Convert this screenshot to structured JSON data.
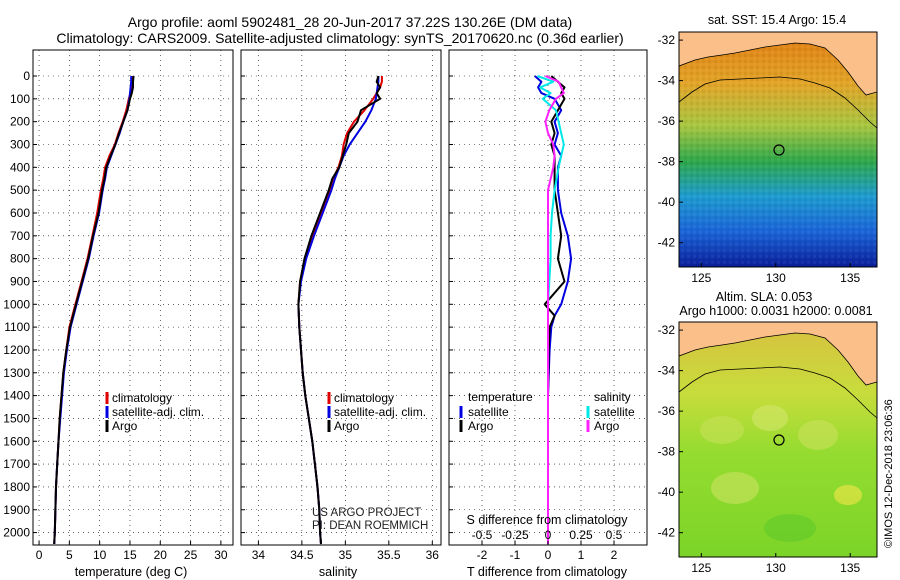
{
  "title_line1": "Argo profile: aoml 5902481_28 20-Jun-2017 37.22S 130.26E (DM data)",
  "title_line2": "Climatology: CARS2009. Satellite-adjusted climatology: synTS_20170620.nc (0.36d earlier)",
  "colors": {
    "climatology": "#e00000",
    "satellite": "#0000e0",
    "argo": "#000000",
    "sal_sat": "#00e8e8",
    "sal_argo": "#ff20ff"
  },
  "depth_ticks": [
    "0",
    "100",
    "200",
    "300",
    "400",
    "500",
    "600",
    "700",
    "800",
    "900",
    "1000",
    "1100",
    "1200",
    "1300",
    "1400",
    "1500",
    "1600",
    "1700",
    "1800",
    "1900",
    "2000"
  ],
  "credit": {
    "line1": "US ARGO PROJECT",
    "line2": "PI: DEAN ROEMMICH"
  },
  "copyright": "©IMOS 12-Dec-2018 23:06:36",
  "chart_data": [
    {
      "type": "line",
      "name": "temperature",
      "xlabel": "temperature (deg C)",
      "xlim": [
        -1,
        32
      ],
      "ylim": [
        2100,
        0
      ],
      "ylabel": "",
      "xticks": [
        "0",
        "5",
        "10",
        "15",
        "20",
        "25",
        "30"
      ],
      "grid": true,
      "legend": [
        "climatology",
        "satellite-adj. clim.",
        "Argo"
      ],
      "depth": [
        0,
        25,
        50,
        75,
        100,
        150,
        200,
        250,
        300,
        350,
        400,
        450,
        500,
        600,
        700,
        800,
        900,
        1000,
        1100,
        1200,
        1300,
        1400,
        1500,
        1600,
        1700,
        1800,
        1900,
        2000,
        2050
      ],
      "series": [
        {
          "name": "climatology",
          "color": "climatology",
          "values": [
            15.3,
            15.3,
            15.2,
            15.1,
            14.8,
            14.4,
            13.8,
            13.1,
            12.5,
            11.6,
            10.9,
            10.6,
            10.2,
            9.6,
            8.8,
            8.0,
            7.0,
            6.0,
            5.0,
            4.5,
            4.0,
            3.7,
            3.4,
            3.2,
            3.0,
            2.8,
            2.7,
            2.6,
            2.5
          ]
        },
        {
          "name": "satellite-adj. clim.",
          "color": "satellite",
          "values": [
            15.2,
            15.2,
            15.1,
            15.0,
            14.9,
            14.6,
            13.9,
            13.3,
            12.6,
            11.9,
            11.2,
            10.9,
            10.5,
            9.9,
            9.0,
            8.2,
            7.2,
            6.2,
            5.2,
            4.6,
            4.1,
            3.8,
            3.5,
            3.2,
            3.0,
            2.8,
            2.7,
            2.6,
            2.5
          ]
        },
        {
          "name": "Argo",
          "color": "argo",
          "values": [
            15.6,
            15.5,
            15.5,
            15.3,
            15.0,
            14.6,
            13.9,
            13.2,
            12.6,
            11.8,
            11.1,
            10.8,
            10.4,
            9.8,
            8.9,
            8.1,
            7.1,
            6.1,
            5.1,
            4.5,
            4.0,
            3.7,
            3.4,
            3.2,
            3.0,
            2.8,
            2.7,
            2.6,
            2.5
          ]
        }
      ]
    },
    {
      "type": "line",
      "name": "salinity",
      "xlabel": "salinity",
      "xlim": [
        33.8,
        36.1
      ],
      "ylim": [
        2100,
        0
      ],
      "ylabel": "",
      "xticks": [
        "34",
        "34.5",
        "35",
        "35.5",
        "36"
      ],
      "grid": true,
      "legend": [
        "climatology",
        "satellite-adj. clim.",
        "Argo"
      ],
      "depth": [
        0,
        25,
        50,
        75,
        100,
        150,
        200,
        250,
        300,
        350,
        400,
        450,
        500,
        600,
        700,
        800,
        900,
        1000,
        1100,
        1200,
        1300,
        1400,
        1500,
        1600,
        1700,
        1800,
        1900,
        2000,
        2050
      ],
      "series": [
        {
          "name": "climatology",
          "color": "climatology",
          "values": [
            35.42,
            35.42,
            35.4,
            35.36,
            35.32,
            35.22,
            35.1,
            35.02,
            34.98,
            34.96,
            34.92,
            34.86,
            34.82,
            34.72,
            34.62,
            34.54,
            34.48,
            34.46,
            34.47,
            34.49,
            34.51,
            34.54,
            34.58,
            34.62,
            34.65,
            34.68,
            34.7,
            34.71,
            34.72
          ]
        },
        {
          "name": "satellite-adj. clim.",
          "color": "satellite",
          "values": [
            35.38,
            35.38,
            35.37,
            35.36,
            35.35,
            35.3,
            35.23,
            35.14,
            35.05,
            34.98,
            34.93,
            34.88,
            34.84,
            34.74,
            34.64,
            34.55,
            34.49,
            34.46,
            34.47,
            34.49,
            34.51,
            34.54,
            34.58,
            34.62,
            34.65,
            34.68,
            34.7,
            34.71,
            34.72
          ]
        },
        {
          "name": "Argo",
          "color": "argo",
          "values": [
            35.38,
            35.36,
            35.4,
            35.36,
            35.4,
            35.18,
            35.14,
            35.04,
            35.01,
            34.97,
            34.93,
            34.85,
            34.81,
            34.71,
            34.61,
            34.53,
            34.48,
            34.46,
            34.47,
            34.49,
            34.51,
            34.54,
            34.58,
            34.62,
            34.65,
            34.68,
            34.7,
            34.71,
            34.72
          ]
        }
      ]
    },
    {
      "type": "line",
      "name": "difference",
      "xlabel": "T difference from climatology",
      "xlabel_top": "S difference from climatology",
      "xlim": [
        -3,
        3
      ],
      "ylim": [
        2100,
        0
      ],
      "ylabel": "",
      "xticks": [
        "-2",
        "-1",
        "0",
        "1",
        "2"
      ],
      "xticks_top": [
        "-0.5",
        "-0.25",
        "0",
        "0.25",
        "0.5"
      ],
      "grid": true,
      "legend_left_title": "temperature",
      "legend_right_title": "salinity",
      "legend_left": [
        "satellite",
        "Argo"
      ],
      "legend_right": [
        "satellite",
        "Argo"
      ],
      "depth": [
        0,
        25,
        50,
        75,
        100,
        150,
        200,
        250,
        300,
        350,
        400,
        500,
        600,
        700,
        800,
        900,
        1000,
        1050,
        1100,
        1200,
        1400,
        1600,
        1800,
        2050
      ],
      "series": [
        {
          "name": "temperature satellite",
          "color": "satellite",
          "values": [
            -0.4,
            -0.2,
            -0.3,
            -0.2,
            0.2,
            0.4,
            0.2,
            0.3,
            0.2,
            0.4,
            0.3,
            0.3,
            0.4,
            0.6,
            0.7,
            0.6,
            0.4,
            0.2,
            0.1,
            0.05,
            0.0,
            0.0,
            0.0,
            0.0
          ]
        },
        {
          "name": "temperature Argo",
          "color": "argo",
          "values": [
            0.1,
            0.3,
            0.5,
            0.4,
            0.5,
            0.3,
            0.1,
            0.2,
            0.1,
            0.2,
            0.2,
            0.2,
            0.3,
            0.4,
            0.3,
            0.5,
            -0.1,
            0.2,
            0.05,
            0.02,
            0.0,
            0.0,
            0.0,
            0.0
          ]
        },
        {
          "name": "salinity satellite",
          "color": "sal_sat",
          "values": [
            -0.08,
            0.04,
            -0.06,
            0.02,
            -0.04,
            0.06,
            0.08,
            0.1,
            0.12,
            0.1,
            0.08,
            0.05,
            0.03,
            0.02,
            0.02,
            0.01,
            0.0,
            0.0,
            0.0,
            0.0,
            0.0,
            0.0,
            0.0,
            0.0
          ]
        },
        {
          "name": "salinity Argo",
          "color": "sal_argo",
          "values": [
            -0.02,
            0.08,
            0.1,
            0.12,
            0.06,
            0.01,
            -0.02,
            0.0,
            0.04,
            0.05,
            0.04,
            0.0,
            0.0,
            0.0,
            0.0,
            0.0,
            0.0,
            0.0,
            0.0,
            0.0,
            0.0,
            0.0,
            0.0,
            0.0
          ]
        }
      ]
    },
    {
      "type": "heatmap",
      "name": "sst-map",
      "title": "sat. SST: 15.4 Argo: 15.4",
      "xticks": [
        "125",
        "130",
        "135"
      ],
      "yticks": [
        "-32",
        "-34",
        "-36",
        "-38",
        "-40",
        "-42"
      ],
      "xlim": [
        123.5,
        136.8
      ],
      "ylim": [
        -43.2,
        -31.6
      ],
      "profile_lon": 130.26,
      "profile_lat": -37.22
    },
    {
      "type": "heatmap",
      "name": "sla-map",
      "title_line1": "Altim. SLA: 0.053",
      "title_line2": "Argo h1000: 0.0031 h2000: 0.0081",
      "xticks": [
        "125",
        "130",
        "135"
      ],
      "yticks": [
        "-32",
        "-34",
        "-36",
        "-38",
        "-40",
        "-42"
      ],
      "xlim": [
        123.5,
        136.8
      ],
      "ylim": [
        -43.2,
        -31.6
      ],
      "profile_lon": 130.26,
      "profile_lat": -37.22
    }
  ]
}
